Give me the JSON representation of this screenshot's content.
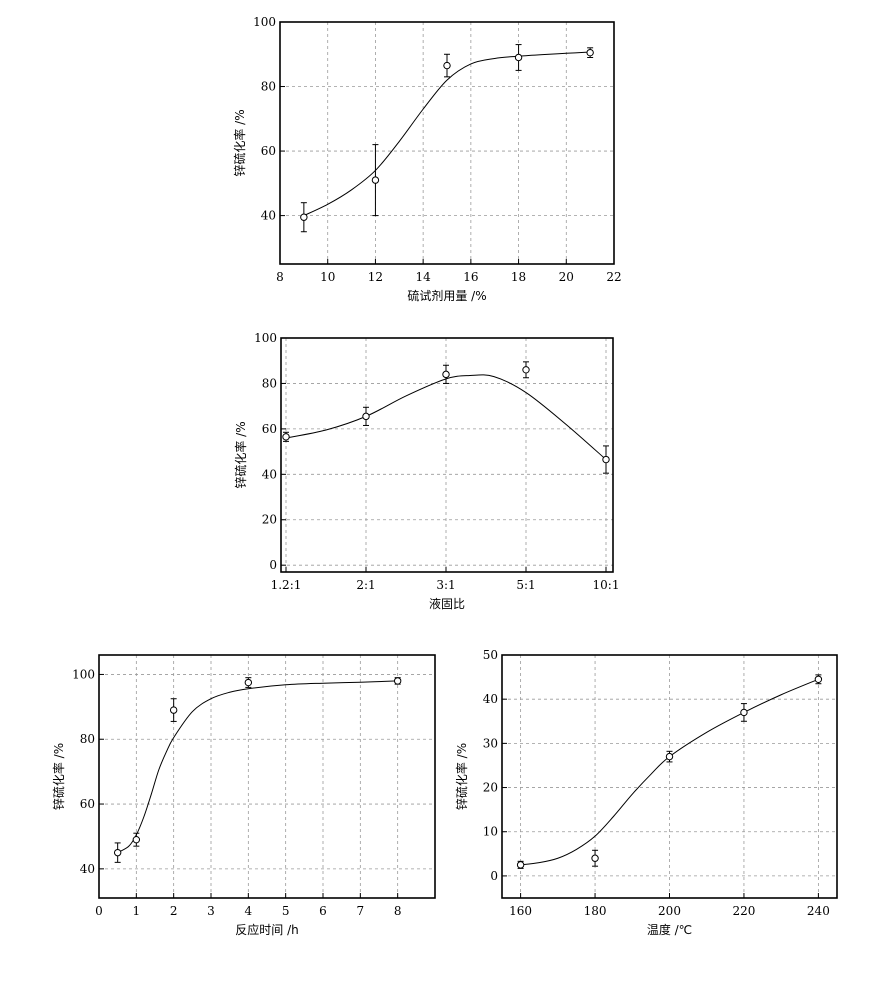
{
  "chart_data": [
    {
      "type": "scatter",
      "xlabel": "硫试剂用量 /%",
      "ylabel": "锌硫化率 /%",
      "xlim": [
        8,
        22
      ],
      "ylim": [
        25,
        100
      ],
      "xticks": [
        8,
        10,
        12,
        14,
        16,
        18,
        20,
        22
      ],
      "yticks": [
        40,
        60,
        80,
        100
      ],
      "x": [
        9,
        12,
        15,
        18,
        21
      ],
      "y": [
        39.5,
        51,
        86.5,
        89,
        90.5
      ],
      "err": [
        4.5,
        11,
        3.5,
        4,
        1.5
      ],
      "curve_x": [
        9,
        10,
        11,
        12,
        13,
        14,
        15,
        16,
        17,
        18,
        19,
        20,
        21
      ],
      "curve_y": [
        40,
        43.5,
        48,
        54,
        63,
        73,
        82,
        87,
        88.7,
        89.4,
        89.9,
        90.3,
        90.7
      ],
      "grid": true
    },
    {
      "type": "scatter",
      "xlabel": "液固比",
      "ylabel": "锌硫化率 /%",
      "categories": [
        "1.2:1",
        "2:1",
        "3:1",
        "5:1",
        "10:1"
      ],
      "ylim": [
        -3,
        100
      ],
      "yticks": [
        0,
        20,
        40,
        60,
        80,
        100
      ],
      "y": [
        56.5,
        65.5,
        84,
        86,
        46.5
      ],
      "err": [
        2,
        4,
        4,
        3.5,
        6
      ],
      "curve_x": [
        0,
        0.5,
        1,
        1.5,
        2,
        2.3,
        2.6,
        3,
        3.5,
        4
      ],
      "curve_y": [
        56,
        59.5,
        65.5,
        74.5,
        82,
        83.5,
        83,
        76,
        62,
        46.5
      ],
      "grid": true
    },
    {
      "type": "scatter",
      "xlabel": "反应时间 /h",
      "ylabel": "锌硫化率 /%",
      "xlim": [
        0,
        9
      ],
      "ylim": [
        31,
        106
      ],
      "xticks": [
        0,
        1,
        2,
        3,
        4,
        5,
        6,
        7,
        8
      ],
      "yticks": [
        40,
        60,
        80,
        100
      ],
      "x": [
        0.5,
        1,
        2,
        4,
        8
      ],
      "y": [
        45,
        49,
        89,
        97.5,
        98
      ],
      "err": [
        3,
        2,
        3.5,
        1.5,
        1
      ],
      "curve_x": [
        0.5,
        0.8,
        1,
        1.2,
        1.4,
        1.6,
        1.8,
        2,
        2.5,
        3,
        3.5,
        4,
        5,
        6,
        7,
        8
      ],
      "curve_y": [
        45,
        47,
        50.5,
        56,
        63,
        70.5,
        76,
        80.5,
        88.5,
        92.5,
        94.5,
        95.6,
        96.8,
        97.3,
        97.6,
        98
      ],
      "grid": true
    },
    {
      "type": "scatter",
      "xlabel": "温度 /℃",
      "ylabel": "锌硫化率 /%",
      "xlim": [
        155,
        245
      ],
      "ylim": [
        -5,
        50
      ],
      "xticks": [
        160,
        180,
        200,
        220,
        240
      ],
      "yticks": [
        0,
        10,
        20,
        30,
        40,
        50
      ],
      "x": [
        160,
        180,
        200,
        220,
        240
      ],
      "y": [
        2.5,
        4,
        27,
        37,
        44.5
      ],
      "err": [
        0.8,
        1.8,
        1.2,
        2,
        1
      ],
      "curve_x": [
        160,
        165,
        170,
        175,
        180,
        185,
        190,
        195,
        200,
        210,
        220,
        230,
        240
      ],
      "curve_y": [
        2.5,
        3,
        4,
        6,
        9,
        13.5,
        18.5,
        23,
        27,
        32.5,
        37,
        41,
        44.5
      ],
      "grid": true
    }
  ]
}
